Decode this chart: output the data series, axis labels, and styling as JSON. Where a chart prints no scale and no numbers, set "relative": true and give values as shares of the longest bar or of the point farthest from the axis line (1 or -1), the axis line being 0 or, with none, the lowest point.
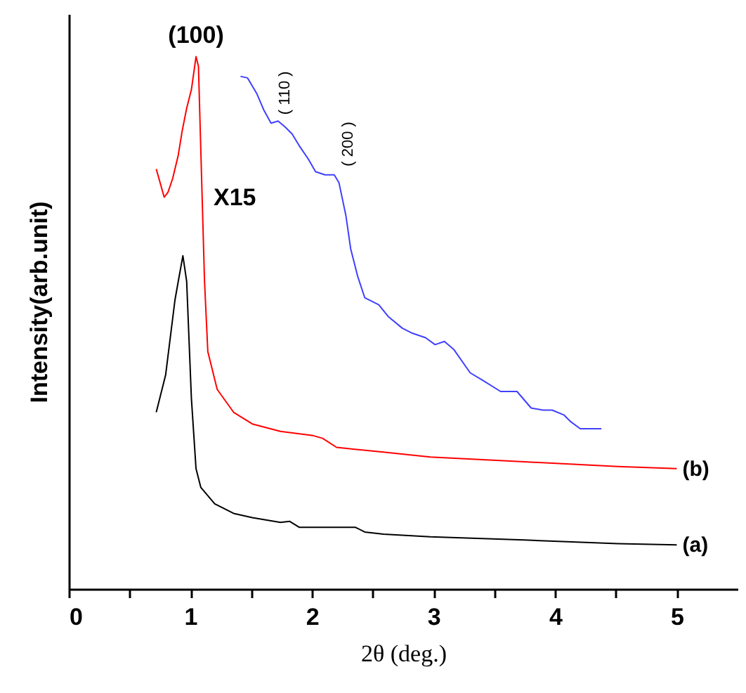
{
  "chart_data": {
    "type": "line",
    "relative": true,
    "xlabel": "2θ (deg.)",
    "ylabel": "Intensity(arb.unit)",
    "xlim": [
      0,
      5.5
    ],
    "xticks": [
      0,
      {
        "value": 0.5,
        "label": null
      },
      1,
      {
        "value": 1.5,
        "label": null
      },
      2,
      {
        "value": 2.5,
        "label": null
      },
      3,
      {
        "value": 3.5,
        "label": null
      },
      4,
      {
        "value": 4.5,
        "label": null
      },
      5
    ],
    "grid": false,
    "line_style": "solid",
    "marker": "none",
    "series": [
      {
        "name": "(a)",
        "color": "#000000",
        "x": [
          0.719,
          0.796,
          0.873,
          0.9,
          0.938,
          0.969,
          1.008,
          1.046,
          1.085,
          1.2,
          1.355,
          1.509,
          1.74,
          1.817,
          1.894,
          2.202,
          2.356,
          2.434,
          2.588,
          2.973,
          3.744,
          4.514,
          5.0
        ],
        "values": [
          0.332,
          0.402,
          0.543,
          0.578,
          0.626,
          0.578,
          0.358,
          0.226,
          0.191,
          0.16,
          0.142,
          0.134,
          0.125,
          0.127,
          0.116,
          0.116,
          0.116,
          0.107,
          0.103,
          0.098,
          0.092,
          0.085,
          0.083
        ]
      },
      {
        "name": "(b)",
        "color": "#ff0000",
        "x": [
          0.719,
          0.746,
          0.784,
          0.815,
          0.854,
          0.9,
          0.931,
          0.969,
          1.008,
          1.046,
          1.066,
          1.092,
          1.116,
          1.143,
          1.22,
          1.355,
          1.509,
          1.74,
          2.01,
          2.087,
          2.202,
          2.588,
          2.973,
          3.744,
          4.514,
          5.0
        ],
        "values": [
          0.789,
          0.767,
          0.736,
          0.745,
          0.771,
          0.815,
          0.859,
          0.903,
          0.938,
          1.0,
          0.982,
          0.771,
          0.578,
          0.446,
          0.375,
          0.332,
          0.31,
          0.296,
          0.288,
          0.283,
          0.266,
          0.257,
          0.248,
          0.239,
          0.23,
          0.226
        ]
      },
      {
        "color": "#4040ff",
        "x": [
          1.412,
          1.47,
          1.547,
          1.605,
          1.663,
          1.721,
          1.778,
          1.836,
          1.894,
          1.971,
          2.029,
          2.106,
          2.183,
          2.222,
          2.279,
          2.318,
          2.376,
          2.434,
          2.549,
          2.626,
          2.742,
          2.819,
          2.934,
          3.012,
          3.089,
          3.166,
          3.301,
          3.397,
          3.551,
          3.686,
          3.802,
          3.898,
          3.975,
          4.071,
          4.129,
          4.206,
          4.38
        ],
        "values": [
          0.963,
          0.96,
          0.93,
          0.899,
          0.875,
          0.879,
          0.868,
          0.855,
          0.833,
          0.807,
          0.784,
          0.778,
          0.778,
          0.763,
          0.701,
          0.639,
          0.587,
          0.547,
          0.534,
          0.512,
          0.49,
          0.481,
          0.472,
          0.459,
          0.465,
          0.45,
          0.406,
          0.393,
          0.371,
          0.371,
          0.34,
          0.336,
          0.336,
          0.327,
          0.314,
          0.301,
          0.301
        ]
      }
    ],
    "annotations": [
      {
        "text": "(100)",
        "x": 1.046,
        "y": 1.0
      },
      "X15",
      {
        "text": "( 110 )",
        "x": 1.663,
        "y": 0.875
      },
      {
        "text": "( 200 )",
        "x": 2.183,
        "y": 0.778
      }
    ]
  }
}
